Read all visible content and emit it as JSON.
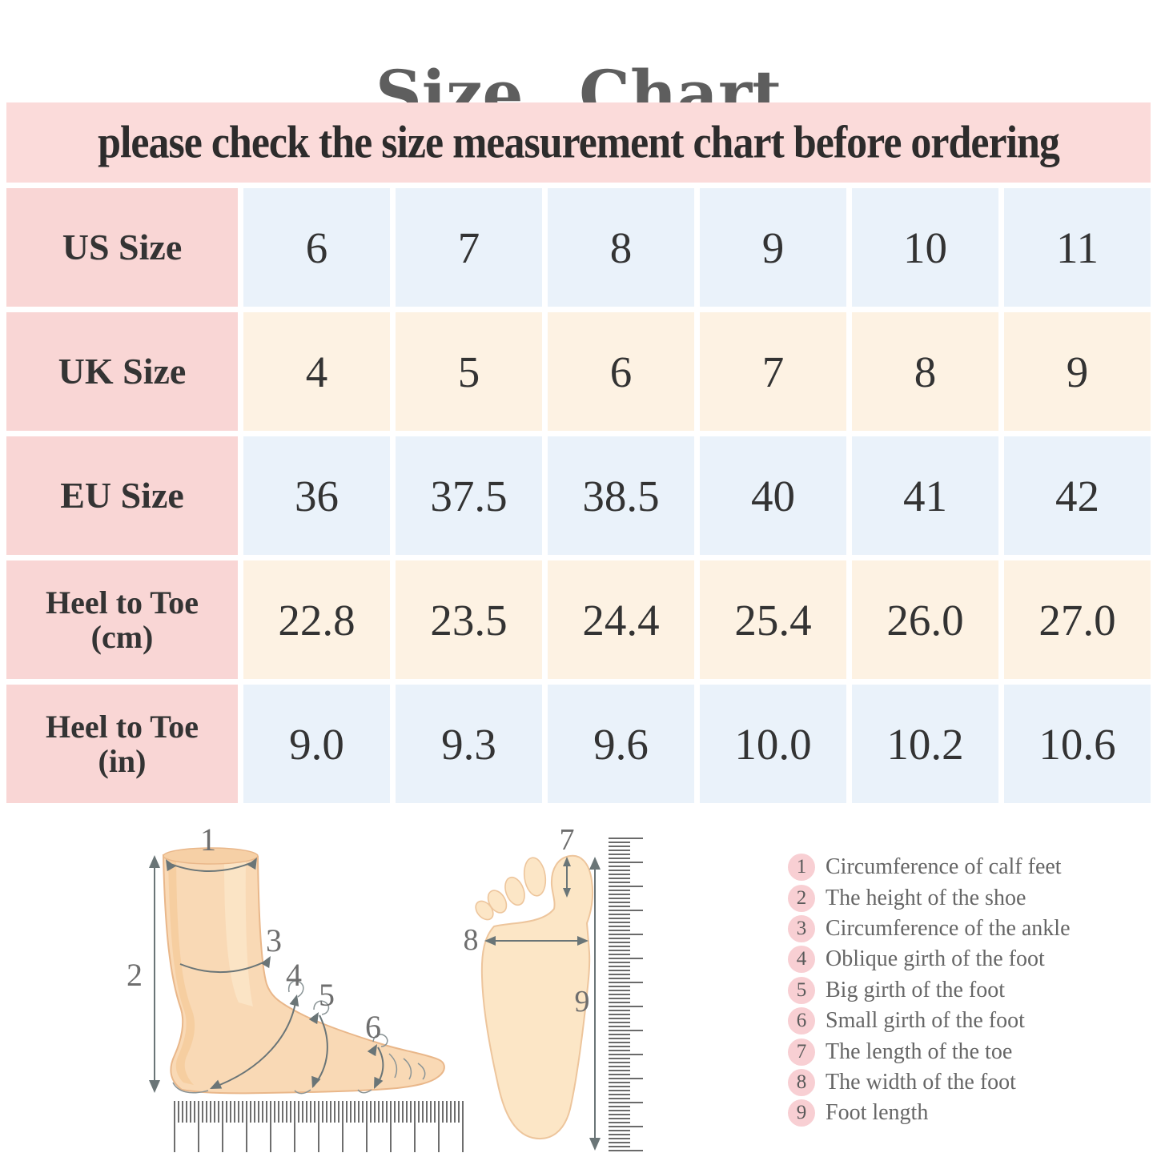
{
  "title": "Size Chart",
  "banner": "please check the size measurement chart before ordering",
  "chart_data": {
    "type": "table",
    "title": "Size Chart",
    "note": "please check the size measurement chart before ordering",
    "rows": [
      {
        "label": "US Size",
        "label_line1": "US Size",
        "label_line2": "",
        "values": [
          "6",
          "7",
          "8",
          "9",
          "10",
          "11"
        ]
      },
      {
        "label": "UK Size",
        "label_line1": "UK Size",
        "label_line2": "",
        "values": [
          "4",
          "5",
          "6",
          "7",
          "8",
          "9"
        ]
      },
      {
        "label": "EU Size",
        "label_line1": "EU Size",
        "label_line2": "",
        "values": [
          "36",
          "37.5",
          "38.5",
          "40",
          "41",
          "42"
        ]
      },
      {
        "label": "Heel to Toe (cm)",
        "label_line1": "Heel to Toe",
        "label_line2": "(cm)",
        "values": [
          "22.8",
          "23.5",
          "24.4",
          "25.4",
          "26.0",
          "27.0"
        ]
      },
      {
        "label": "Heel to Toe (in)",
        "label_line1": "Heel to Toe",
        "label_line2": "(in)",
        "values": [
          "9.0",
          "9.3",
          "9.6",
          "10.0",
          "10.2",
          "10.6"
        ]
      }
    ]
  },
  "legend": {
    "items": [
      {
        "num": "1",
        "text": "Circumference of calf feet"
      },
      {
        "num": "2",
        "text": "The height of the shoe"
      },
      {
        "num": "3",
        "text": "Circumference of the ankle"
      },
      {
        "num": "4",
        "text": "Oblique girth of the foot"
      },
      {
        "num": "5",
        "text": "Big girth of the foot"
      },
      {
        "num": "6",
        "text": "Small girth of the foot"
      },
      {
        "num": "7",
        "text": "The length of the toe"
      },
      {
        "num": "8",
        "text": "The width of the foot"
      },
      {
        "num": "9",
        "text": "Foot length"
      }
    ]
  },
  "diagram": {
    "side_markers": [
      "1",
      "2",
      "3",
      "4",
      "5",
      "6"
    ],
    "sole_markers": [
      "7",
      "8",
      "9"
    ]
  },
  "colors": {
    "banner_bg": "#fbdbda",
    "header_cell_bg": "#f9d6d5",
    "blue_cell_bg": "#eaf2fa",
    "cream_cell_bg": "#fdf2e3",
    "legend_circle_bg": "#f8cfd3",
    "title_text": "#5e5e5e",
    "table_text": "#333333",
    "skin": "#f9d9b5",
    "skin_light": "#fce6c6",
    "skin_outline": "#e9b78a",
    "measure_stroke": "#6a7577"
  }
}
